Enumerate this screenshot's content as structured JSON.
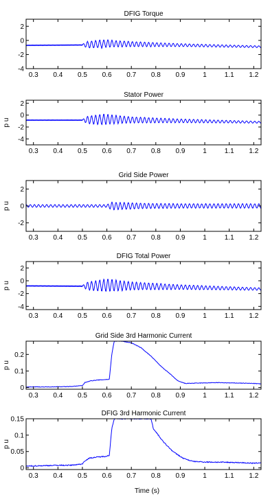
{
  "figure": {
    "xlabel": "Time (s)",
    "line_color": "#0000ff"
  },
  "chart_data": [
    {
      "type": "line",
      "title": "DFIG Torque",
      "ylabel": "",
      "xlim": [
        0.27,
        1.23
      ],
      "ylim": [
        -4,
        3
      ],
      "x_ticks": [
        "0.3",
        "0.4",
        "0.5",
        "0.6",
        "0.7",
        "0.8",
        "0.9",
        "1",
        "1.1",
        "1.2"
      ],
      "y_ticks": [
        "2",
        "0",
        "-2",
        "-4"
      ],
      "y_tick_values": [
        2,
        0,
        -2,
        -4
      ],
      "series": [
        {
          "baseline": [
            [
              0.27,
              -0.7
            ],
            [
              0.5,
              -0.65
            ],
            [
              0.6,
              -0.45
            ],
            [
              0.8,
              -0.6
            ],
            [
              1.23,
              -0.9
            ]
          ],
          "oscillation": {
            "start": 0.5,
            "freq_hz": 60,
            "envelope": [
              [
                0.5,
                0.1
              ],
              [
                0.52,
                0.45
              ],
              [
                0.58,
                0.55
              ],
              [
                0.7,
                0.35
              ],
              [
                0.9,
                0.2
              ],
              [
                1.23,
                0.12
              ]
            ],
            "pre_noise": 0.04
          }
        }
      ]
    },
    {
      "type": "line",
      "title": "Stator Power",
      "ylabel": "p u",
      "xlim": [
        0.27,
        1.23
      ],
      "ylim": [
        -5,
        2.5
      ],
      "x_ticks": [
        "0.3",
        "0.4",
        "0.5",
        "0.6",
        "0.7",
        "0.8",
        "0.9",
        "1",
        "1.1",
        "1.2"
      ],
      "y_ticks": [
        "2",
        "0",
        "-2",
        "-4"
      ],
      "y_tick_values": [
        2,
        0,
        -2,
        -4
      ],
      "series": [
        {
          "baseline": [
            [
              0.27,
              -0.85
            ],
            [
              0.5,
              -0.85
            ],
            [
              0.6,
              -0.7
            ],
            [
              0.8,
              -0.9
            ],
            [
              1.23,
              -1.2
            ]
          ],
          "oscillation": {
            "start": 0.5,
            "freq_hz": 60,
            "envelope": [
              [
                0.5,
                0.1
              ],
              [
                0.52,
                0.6
              ],
              [
                0.58,
                0.85
              ],
              [
                0.7,
                0.5
              ],
              [
                0.9,
                0.3
              ],
              [
                1.23,
                0.15
              ]
            ],
            "pre_noise": 0.05
          }
        }
      ]
    },
    {
      "type": "line",
      "title": "Grid Side Power",
      "ylabel": "p u",
      "xlim": [
        0.27,
        1.23
      ],
      "ylim": [
        -3,
        3
      ],
      "x_ticks": [
        "0.3",
        "0.4",
        "0.5",
        "0.6",
        "0.7",
        "0.8",
        "0.9",
        "1",
        "1.1",
        "1.2"
      ],
      "y_ticks": [
        "2",
        "0",
        "-2"
      ],
      "y_tick_values": [
        2,
        0,
        -2
      ],
      "series": [
        {
          "baseline": [
            [
              0.27,
              0.0
            ],
            [
              1.23,
              0.0
            ]
          ],
          "oscillation": {
            "start": 0.27,
            "freq_hz": 60,
            "envelope": [
              [
                0.27,
                0.15
              ],
              [
                0.6,
                0.15
              ],
              [
                0.62,
                0.45
              ],
              [
                0.66,
                0.4
              ],
              [
                0.75,
                0.3
              ],
              [
                0.9,
                0.25
              ],
              [
                1.23,
                0.25
              ]
            ],
            "pre_noise": 0.0
          }
        }
      ]
    },
    {
      "type": "line",
      "title": "DFIG Total Power",
      "ylabel": "p u",
      "xlim": [
        0.27,
        1.23
      ],
      "ylim": [
        -4.5,
        3
      ],
      "x_ticks": [
        "0.3",
        "0.4",
        "0.5",
        "0.6",
        "0.7",
        "0.8",
        "0.9",
        "1",
        "1.1",
        "1.2"
      ],
      "y_ticks": [
        "2",
        "0",
        "-2",
        "-4"
      ],
      "y_tick_values": [
        2,
        0,
        -2,
        -4
      ],
      "series": [
        {
          "baseline": [
            [
              0.27,
              -0.8
            ],
            [
              0.5,
              -0.85
            ],
            [
              0.6,
              -0.7
            ],
            [
              0.8,
              -0.9
            ],
            [
              1.23,
              -1.3
            ]
          ],
          "oscillation": {
            "start": 0.5,
            "freq_hz": 60,
            "envelope": [
              [
                0.5,
                0.1
              ],
              [
                0.52,
                0.6
              ],
              [
                0.6,
                0.95
              ],
              [
                0.7,
                0.6
              ],
              [
                0.9,
                0.35
              ],
              [
                1.23,
                0.18
              ]
            ],
            "pre_noise": 0.05
          }
        }
      ]
    },
    {
      "type": "line",
      "title": "Grid Side 3rd Harmonic Current",
      "ylabel": "p u",
      "xlim": [
        0.27,
        1.23
      ],
      "ylim": [
        -0.01,
        0.28
      ],
      "x_ticks": [
        "0.3",
        "0.4",
        "0.5",
        "0.6",
        "0.7",
        "0.8",
        "0.9",
        "1",
        "1.1",
        "1.2"
      ],
      "y_ticks": [
        "0.2",
        "0.1",
        "0"
      ],
      "y_tick_values": [
        0.2,
        0.1,
        0
      ],
      "series": [
        {
          "points": [
            [
              0.27,
              0.003
            ],
            [
              0.3,
              0.004
            ],
            [
              0.35,
              0.004
            ],
            [
              0.4,
              0.005
            ],
            [
              0.45,
              0.006
            ],
            [
              0.5,
              0.012
            ],
            [
              0.51,
              0.03
            ],
            [
              0.53,
              0.04
            ],
            [
              0.56,
              0.045
            ],
            [
              0.59,
              0.048
            ],
            [
              0.61,
              0.05
            ],
            [
              0.62,
              0.2
            ],
            [
              0.63,
              0.28
            ],
            [
              0.66,
              0.28
            ],
            [
              0.7,
              0.27
            ],
            [
              0.74,
              0.24
            ],
            [
              0.78,
              0.19
            ],
            [
              0.82,
              0.13
            ],
            [
              0.86,
              0.08
            ],
            [
              0.89,
              0.04
            ],
            [
              0.92,
              0.025
            ],
            [
              1.0,
              0.028
            ],
            [
              1.05,
              0.03
            ],
            [
              1.1,
              0.028
            ],
            [
              1.15,
              0.027
            ],
            [
              1.2,
              0.025
            ],
            [
              1.23,
              0.022
            ]
          ],
          "noise": 0.003
        }
      ]
    },
    {
      "type": "line",
      "title": "DFIG 3rd Harmonic Current",
      "ylabel": "p u",
      "xlim": [
        0.27,
        1.23
      ],
      "ylim": [
        -0.005,
        0.15
      ],
      "x_ticks": [
        "0.3",
        "0.4",
        "0.5",
        "0.6",
        "0.7",
        "0.8",
        "0.9",
        "1",
        "1.1",
        "1.2"
      ],
      "y_ticks": [
        "0.15",
        "0.1",
        "0.05",
        "0"
      ],
      "y_tick_values": [
        0.15,
        0.1,
        0.05,
        0
      ],
      "series": [
        {
          "points": [
            [
              0.27,
              0.005
            ],
            [
              0.3,
              0.006
            ],
            [
              0.35,
              0.007
            ],
            [
              0.4,
              0.008
            ],
            [
              0.45,
              0.008
            ],
            [
              0.5,
              0.012
            ],
            [
              0.51,
              0.022
            ],
            [
              0.53,
              0.03
            ],
            [
              0.56,
              0.033
            ],
            [
              0.59,
              0.035
            ],
            [
              0.61,
              0.038
            ],
            [
              0.62,
              0.12
            ],
            [
              0.63,
              0.15
            ],
            [
              0.78,
              0.15
            ],
            [
              0.79,
              0.12
            ],
            [
              0.83,
              0.08
            ],
            [
              0.87,
              0.05
            ],
            [
              0.91,
              0.03
            ],
            [
              0.95,
              0.02
            ],
            [
              1.0,
              0.018
            ],
            [
              1.1,
              0.017
            ],
            [
              1.15,
              0.016
            ],
            [
              1.2,
              0.014
            ],
            [
              1.23,
              0.016
            ]
          ],
          "noise": 0.003
        }
      ]
    }
  ]
}
